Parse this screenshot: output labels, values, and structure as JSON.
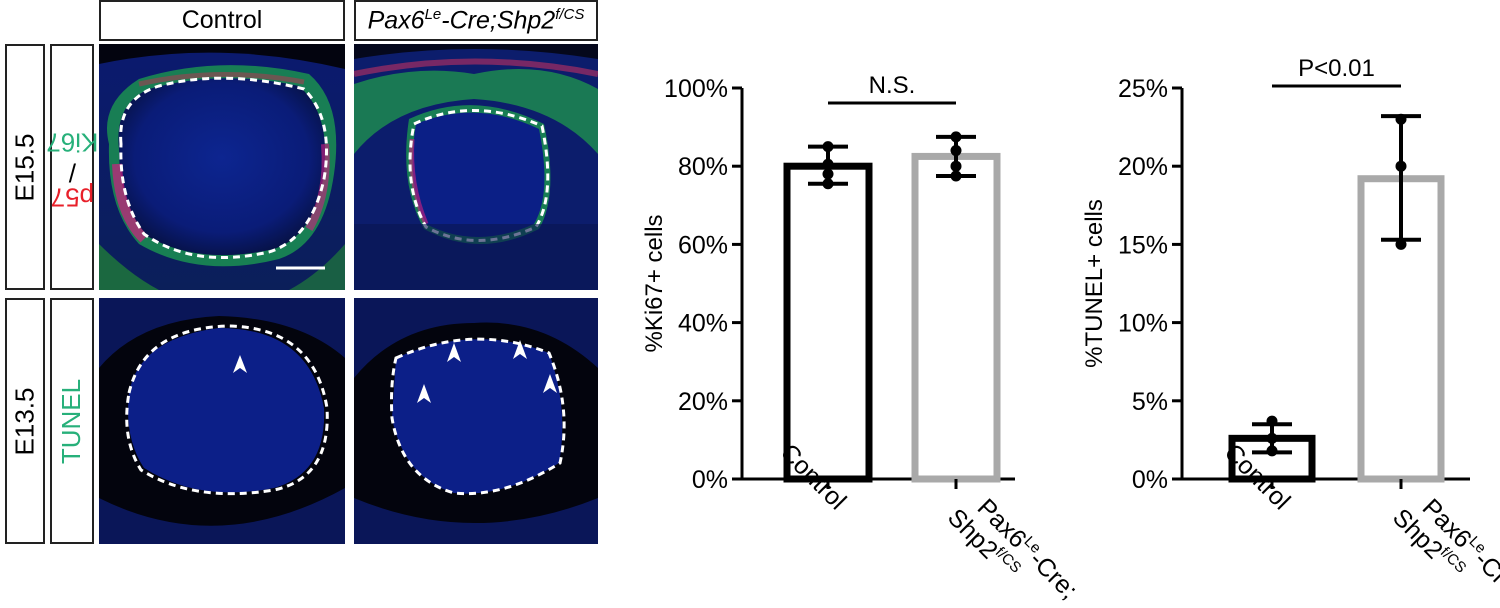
{
  "left_panel": {
    "columns": [
      {
        "label": "Control"
      },
      {
        "label_main": "Pax6",
        "label_sup": "Le",
        "label_mid": "-Cre;Shp2",
        "label_sup2": "f/CS"
      }
    ],
    "rows": [
      {
        "stage": "E15.5",
        "stain_red": "p57",
        "stain_sep": "/",
        "stain_green": "Ki67"
      },
      {
        "stage": "E13.5",
        "stain_green": "TUNEL"
      }
    ],
    "colors": {
      "red": "#e8202a",
      "green": "#27b07a",
      "dapi": "#0b1a7a",
      "background": "#02030f"
    }
  },
  "chart_data": [
    {
      "type": "bar",
      "categories": [
        "Control",
        "Pax6Le-Cre;Shp2f/CS"
      ],
      "values": [
        80,
        82.5
      ],
      "errors": [
        [
          75.5,
          85
        ],
        [
          77.5,
          87.5
        ]
      ],
      "points": [
        [
          85,
          80.5,
          78,
          75.5
        ],
        [
          87.5,
          84,
          80,
          77.5
        ]
      ],
      "ylabel": "%Ki67+ cells",
      "ylim": [
        0,
        100
      ],
      "yticks": [
        "0%",
        "20%",
        "40%",
        "60%",
        "80%",
        "100%"
      ],
      "significance": "N.S.",
      "bar_colors": [
        "#000000",
        "#a9a9a9"
      ]
    },
    {
      "type": "bar",
      "categories": [
        "Control",
        "Pax6Le-Cre;Shp2f/CS"
      ],
      "values": [
        2.6,
        19.2
      ],
      "errors": [
        [
          1.7,
          3.5
        ],
        [
          15.3,
          23.2
        ]
      ],
      "points": [
        [
          3.7,
          2.6,
          1.8
        ],
        [
          23,
          20,
          15
        ]
      ],
      "ylabel": "%TUNEL+ cells",
      "ylim": [
        0,
        25
      ],
      "yticks": [
        "0%",
        "5%",
        "10%",
        "15%",
        "20%",
        "25%"
      ],
      "significance": "P<0.01",
      "bar_colors": [
        "#000000",
        "#a9a9a9"
      ]
    }
  ],
  "xtick_labels": {
    "control": "Control",
    "mutant_line1_main": "Pax6",
    "mutant_line1_sup": "Le",
    "mutant_line1_end": "-Cre;",
    "mutant_line2_main": "Shp2",
    "mutant_line2_sup": "f/CS"
  }
}
